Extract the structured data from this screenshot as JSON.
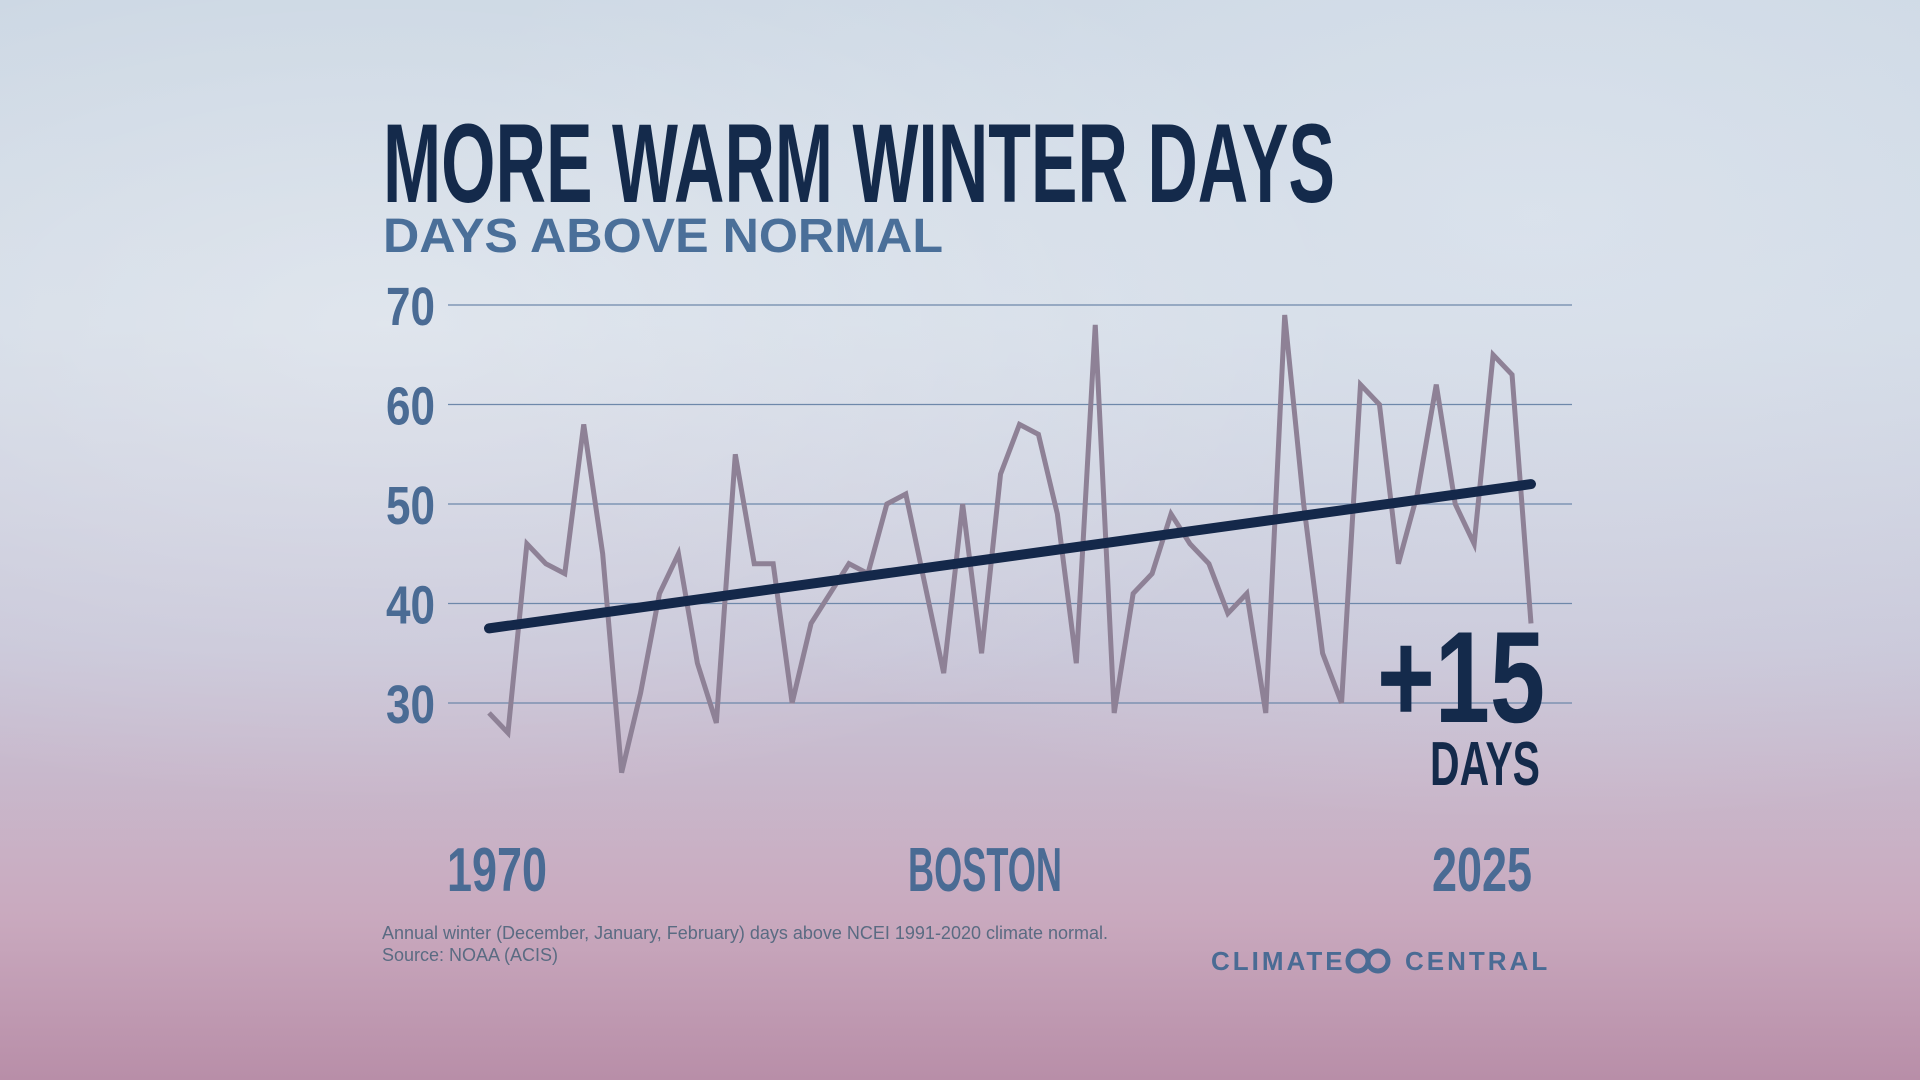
{
  "chart_data": {
    "type": "line",
    "title": "MORE WARM WINTER DAYS",
    "subtitle": "DAYS ABOVE NORMAL",
    "location": "BOSTON",
    "x": [
      1970,
      1971,
      1972,
      1973,
      1974,
      1975,
      1976,
      1977,
      1978,
      1979,
      1980,
      1981,
      1982,
      1983,
      1984,
      1985,
      1986,
      1987,
      1988,
      1989,
      1990,
      1991,
      1992,
      1993,
      1994,
      1995,
      1996,
      1997,
      1998,
      1999,
      2000,
      2001,
      2002,
      2003,
      2004,
      2005,
      2006,
      2007,
      2008,
      2009,
      2010,
      2011,
      2012,
      2013,
      2014,
      2015,
      2016,
      2017,
      2018,
      2019,
      2020,
      2021,
      2022,
      2023,
      2024,
      2025
    ],
    "series": [
      {
        "color": "#8e8196",
        "values": [
          29,
          27,
          46,
          44,
          43,
          58,
          45,
          23,
          31,
          41,
          45,
          34,
          28,
          55,
          44,
          44,
          30,
          38,
          41,
          44,
          43,
          50,
          51,
          42,
          33,
          50,
          35,
          53,
          58,
          57,
          49,
          34,
          68,
          29,
          41,
          43,
          49,
          46,
          44,
          39,
          41,
          29,
          69,
          50,
          35,
          30,
          62,
          60,
          44,
          51,
          62,
          50,
          46,
          65,
          63,
          38
        ]
      }
    ],
    "trend": {
      "color": "#14284a",
      "x": [
        1970,
        2025
      ],
      "values": [
        37.5,
        52
      ]
    },
    "annotation": {
      "value": "+15",
      "unit": "DAYS"
    },
    "xlim": [
      1970,
      2025
    ],
    "xticks": [
      1970,
      2025
    ],
    "ylim": [
      30,
      70
    ],
    "yticks": [
      30,
      40,
      50,
      60,
      70
    ],
    "grid": true,
    "footnote": [
      "Annual winter (December, January, February) days above NCEI 1991-2020 climate normal.",
      "Source: NOAA (ACIS)"
    ],
    "logo": [
      "CLIMATE",
      "CENTRAL"
    ]
  }
}
